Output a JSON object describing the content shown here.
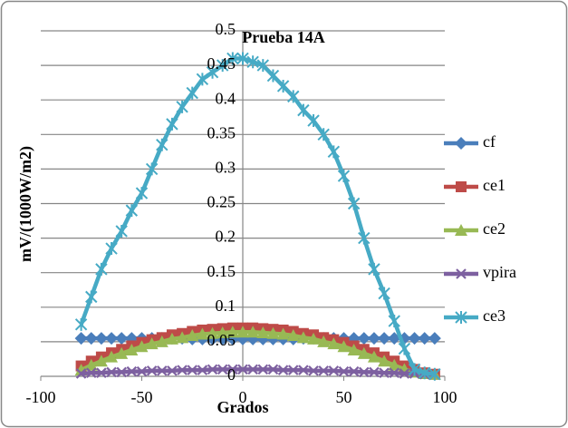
{
  "chart_data": {
    "type": "line",
    "title": "Prueba 14A",
    "x_label": "Grados",
    "y_label": "mV/(1000W/m2)",
    "x": [
      -80,
      -75,
      -70,
      -65,
      -60,
      -55,
      -50,
      -45,
      -40,
      -35,
      -30,
      -25,
      -20,
      -15,
      -10,
      -5,
      0,
      5,
      10,
      15,
      20,
      25,
      30,
      35,
      40,
      45,
      50,
      55,
      60,
      65,
      70,
      75,
      80,
      85,
      90,
      95
    ],
    "series": [
      {
        "name": "cf",
        "color": "#4a7ebb",
        "marker": "diamond",
        "values": [
          0.055,
          0.055,
          0.055,
          0.055,
          0.055,
          0.055,
          0.055,
          0.055,
          0.055,
          0.055,
          0.055,
          0.054,
          0.054,
          0.054,
          0.054,
          0.054,
          0.054,
          0.054,
          0.054,
          0.054,
          0.054,
          0.054,
          0.055,
          0.055,
          0.055,
          0.055,
          0.055,
          0.055,
          0.055,
          0.055,
          0.055,
          0.055,
          0.055,
          0.055,
          0.055,
          0.055
        ]
      },
      {
        "name": "ce1",
        "color": "#be4b48",
        "marker": "square",
        "values": [
          0.015,
          0.022,
          0.028,
          0.034,
          0.039,
          0.044,
          0.049,
          0.053,
          0.056,
          0.06,
          0.062,
          0.065,
          0.067,
          0.068,
          0.069,
          0.07,
          0.07,
          0.07,
          0.069,
          0.068,
          0.067,
          0.065,
          0.062,
          0.06,
          0.056,
          0.053,
          0.049,
          0.044,
          0.039,
          0.034,
          0.028,
          0.022,
          0.015,
          0.01,
          0.005,
          0.003
        ]
      },
      {
        "name": "ce2",
        "color": "#98b954",
        "marker": "triangle",
        "values": [
          0.009,
          0.016,
          0.022,
          0.028,
          0.033,
          0.038,
          0.043,
          0.047,
          0.05,
          0.054,
          0.056,
          0.059,
          0.061,
          0.062,
          0.063,
          0.064,
          0.064,
          0.064,
          0.063,
          0.062,
          0.061,
          0.059,
          0.056,
          0.054,
          0.05,
          0.047,
          0.043,
          0.038,
          0.033,
          0.028,
          0.022,
          0.016,
          0.01,
          0.006,
          0.004,
          0.003
        ]
      },
      {
        "name": "vpira",
        "color": "#7d60a0",
        "marker": "x",
        "values": [
          0.004,
          0.005,
          0.005,
          0.006,
          0.006,
          0.007,
          0.007,
          0.008,
          0.008,
          0.008,
          0.009,
          0.009,
          0.009,
          0.01,
          0.01,
          0.01,
          0.01,
          0.01,
          0.01,
          0.01,
          0.009,
          0.009,
          0.009,
          0.008,
          0.008,
          0.008,
          0.007,
          0.007,
          0.006,
          0.006,
          0.005,
          0.005,
          0.004,
          0.004,
          0.003,
          0.003
        ]
      },
      {
        "name": "ce3",
        "color": "#46aac5",
        "marker": "star",
        "values": [
          0.075,
          0.115,
          0.155,
          0.185,
          0.21,
          0.24,
          0.265,
          0.3,
          0.335,
          0.365,
          0.39,
          0.41,
          0.43,
          0.44,
          0.45,
          0.46,
          0.46,
          0.455,
          0.45,
          0.435,
          0.42,
          0.405,
          0.385,
          0.37,
          0.35,
          0.325,
          0.29,
          0.25,
          0.2,
          0.155,
          0.12,
          0.08,
          0.04,
          0.01,
          0.005,
          0.003
        ]
      }
    ],
    "xlim": [
      -100,
      100
    ],
    "xticks": [
      -100,
      -50,
      0,
      50,
      100
    ],
    "ylim": [
      0,
      0.5
    ],
    "yticks": [
      0,
      0.05,
      0.1,
      0.15,
      0.2,
      0.25,
      0.3,
      0.35,
      0.4,
      0.45,
      0.5
    ],
    "grid": true,
    "legend": "right"
  }
}
